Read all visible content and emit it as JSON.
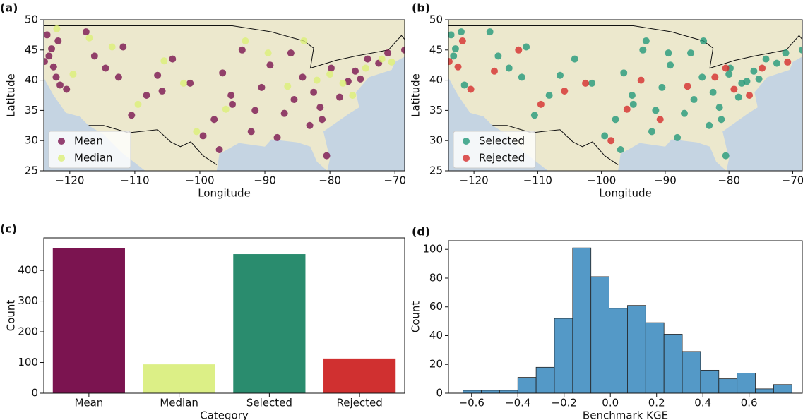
{
  "chart_data": [
    {
      "type": "scatter",
      "panel_label": "(a)",
      "x_label": "Longitude",
      "y_label": "Latitude",
      "xlim": [
        -124,
        -68.5
      ],
      "ylim": [
        25,
        50
      ],
      "xticks": [
        {
          "value": -120,
          "label": "−120"
        },
        {
          "value": -110,
          "label": "−110"
        },
        {
          "value": -100,
          "label": "−100"
        },
        {
          "value": -90,
          "label": "−90"
        },
        {
          "value": -80,
          "label": "−80"
        },
        {
          "value": -70,
          "label": "−70"
        }
      ],
      "yticks": [
        25,
        30,
        35,
        40,
        45,
        50
      ],
      "legend": "lower left",
      "series": [
        {
          "name": "Mean",
          "color": "#7b1450",
          "x": [
            -123.5,
            -122.8,
            -123.9,
            -122.1,
            -121.5,
            -123.2,
            -120.5,
            -122.5,
            -121.8,
            -117.5,
            -116.2,
            -114.5,
            -111.8,
            -112.5,
            -110.5,
            -108.2,
            -106.5,
            -105.8,
            -104.2,
            -101.5,
            -99.5,
            -97.8,
            -96.5,
            -95.2,
            -93.5,
            -92.1,
            -90.5,
            -89.2,
            -88.1,
            -87.0,
            -85.5,
            -84.2,
            -83.1,
            -82.5,
            -81.5,
            -80.5,
            -79.8,
            -78.5,
            -77.2,
            -76.1,
            -75.3,
            -74.2,
            -72.5,
            -71.1,
            -68.5,
            -97.0,
            -95.0,
            -91.5,
            -86.0,
            -81.2
          ],
          "values": [
            47.5,
            45.2,
            43.1,
            40.5,
            39.2,
            44.0,
            38.5,
            42.2,
            46.5,
            48.0,
            44.0,
            42.0,
            45.5,
            40.5,
            34.2,
            37.5,
            40.8,
            38.2,
            43.5,
            39.5,
            30.8,
            33.5,
            41.2,
            37.5,
            45.0,
            31.5,
            38.8,
            42.5,
            30.5,
            34.5,
            36.8,
            40.5,
            32.5,
            38.0,
            35.5,
            27.5,
            42.0,
            37.2,
            39.8,
            41.5,
            40.2,
            43.5,
            42.8,
            44.5,
            45.0,
            28.5,
            36.0,
            35.0,
            44.5,
            33.5
          ]
        },
        {
          "name": "Median",
          "color": "#dcef78",
          "x": [
            -122.0,
            -117.0,
            -113.5,
            -109.5,
            -105.5,
            -102.5,
            -96.0,
            -93.0,
            -89.5,
            -84.0,
            -82.0,
            -80.0,
            -78.0,
            -76.5,
            -74.5,
            -72.0,
            -70.5,
            -119.5,
            -86.5,
            -100.5
          ],
          "values": [
            48.5,
            47.0,
            45.5,
            36.0,
            43.2,
            39.5,
            35.2,
            46.5,
            44.5,
            46.5,
            40.0,
            41.0,
            39.5,
            37.5,
            42.0,
            43.5,
            43.0,
            41.0,
            39.0,
            31.5
          ]
        }
      ]
    },
    {
      "type": "scatter",
      "panel_label": "(b)",
      "x_label": "Longitude",
      "y_label": "Latitude",
      "xlim": [
        -124,
        -68.5
      ],
      "ylim": [
        25,
        50
      ],
      "xticks": [
        {
          "value": -120,
          "label": "−120"
        },
        {
          "value": -110,
          "label": "−110"
        },
        {
          "value": -100,
          "label": "−100"
        },
        {
          "value": -90,
          "label": "−90"
        },
        {
          "value": -80,
          "label": "−80"
        },
        {
          "value": -70,
          "label": "−70"
        }
      ],
      "yticks": [
        25,
        30,
        35,
        40,
        45,
        50
      ],
      "legend": "lower left",
      "series": [
        {
          "name": "Selected",
          "color": "#24987a",
          "x": [
            -123.6,
            -122.9,
            -122.0,
            -121.5,
            -123.2,
            -117.5,
            -116.2,
            -114.5,
            -111.8,
            -112.5,
            -110.5,
            -108.2,
            -106.5,
            -104.2,
            -101.5,
            -99.5,
            -97.8,
            -96.5,
            -95.2,
            -93.5,
            -92.1,
            -90.5,
            -89.2,
            -88.1,
            -87.0,
            -85.5,
            -84.2,
            -83.1,
            -82.5,
            -81.5,
            -80.5,
            -79.8,
            -78.5,
            -77.2,
            -76.1,
            -75.3,
            -74.2,
            -72.5,
            -71.1,
            -68.5,
            -97.0,
            -95.0,
            -91.5,
            -86.0,
            -81.2,
            -80.0,
            -78.0,
            -84.0,
            -89.5,
            -93.0
          ],
          "values": [
            47.5,
            45.2,
            48.0,
            39.2,
            44.0,
            48.0,
            44.0,
            42.0,
            45.5,
            40.5,
            34.2,
            37.5,
            40.8,
            43.5,
            39.5,
            30.8,
            33.5,
            41.2,
            37.5,
            45.0,
            31.5,
            38.8,
            42.5,
            30.5,
            34.5,
            36.8,
            40.5,
            32.5,
            38.0,
            35.5,
            27.5,
            42.0,
            37.2,
            39.8,
            41.5,
            40.2,
            43.5,
            42.8,
            44.5,
            45.0,
            28.5,
            36.0,
            35.0,
            44.5,
            33.5,
            41.0,
            39.5,
            46.5,
            44.5,
            46.5
          ]
        },
        {
          "name": "Rejected",
          "color": "#d62d2d",
          "x": [
            -123.9,
            -122.5,
            -120.5,
            -121.8,
            -116.8,
            -113.0,
            -109.5,
            -105.8,
            -102.5,
            -98.5,
            -96.0,
            -93.8,
            -90.8,
            -86.5,
            -82.2,
            -79.2,
            -76.8,
            -74.8,
            -70.8,
            -80.5
          ],
          "values": [
            43.1,
            42.2,
            38.5,
            46.5,
            41.5,
            45.0,
            36.0,
            38.2,
            39.5,
            30.0,
            35.2,
            40.0,
            33.5,
            39.0,
            40.5,
            38.5,
            37.5,
            42.0,
            43.0,
            42.0
          ]
        }
      ]
    },
    {
      "type": "bar",
      "panel_label": "(c)",
      "x_label": "Category",
      "y_label": "Count",
      "categories": [
        "Mean",
        "Median",
        "Selected",
        "Rejected"
      ],
      "values": [
        472,
        94,
        453,
        113
      ],
      "colors": [
        "#7b1450",
        "#dcef86",
        "#2a8c6e",
        "#d03030"
      ],
      "ylim": [
        0,
        506
      ],
      "yticks": [
        0,
        100,
        200,
        300,
        400
      ]
    },
    {
      "type": "histogram",
      "panel_label": "(d)",
      "x_label": "Benchmark KGE",
      "y_label": "Count",
      "bins": [
        -0.637,
        -0.558,
        -0.479,
        -0.4,
        -0.321,
        -0.242,
        -0.163,
        -0.084,
        -0.005,
        0.074,
        0.153,
        0.232,
        0.311,
        0.39,
        0.469,
        0.548,
        0.627,
        0.706,
        0.785
      ],
      "values": [
        2,
        2,
        2,
        11,
        18,
        52,
        101,
        81,
        59,
        61,
        49,
        41,
        29,
        16,
        10,
        14,
        3,
        6
      ],
      "color": "#5499c7",
      "xlim": [
        -0.7,
        0.83
      ],
      "ylim": [
        0,
        106
      ],
      "xticks": [
        {
          "value": -0.6,
          "label": "−0.6"
        },
        {
          "value": -0.4,
          "label": "−0.4"
        },
        {
          "value": -0.2,
          "label": "−0.2"
        },
        {
          "value": 0,
          "label": "0.0"
        },
        0.2,
        0.4,
        0.6
      ],
      "yticks": [
        0,
        20,
        40,
        60,
        80,
        100
      ]
    }
  ]
}
